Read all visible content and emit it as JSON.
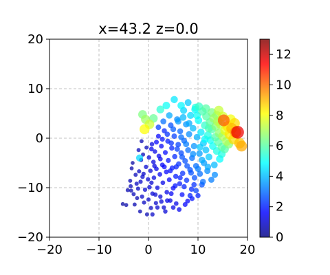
{
  "chart_data": {
    "type": "scatter",
    "title": "x=43.2 z=0.0",
    "xlabel": "",
    "ylabel": "",
    "xlim": [
      -20,
      20
    ],
    "ylim": [
      -20,
      20
    ],
    "x_ticks": [
      -20,
      -10,
      0,
      10,
      20
    ],
    "y_ticks": [
      -20,
      -10,
      0,
      10,
      20
    ],
    "grid": true,
    "colormap": "jet",
    "colorbar": {
      "range": [
        0,
        13
      ],
      "ticks": [
        0,
        2,
        4,
        6,
        8,
        10,
        12
      ]
    },
    "point_color": "value",
    "point_size": "value",
    "points_sample_note_hidden": "",
    "points": [
      {
        "x": -5.2,
        "y": -13.3,
        "value": 0.4
      },
      {
        "x": -4.5,
        "y": -13.5,
        "value": 0.5
      },
      {
        "x": -4.2,
        "y": -10.5,
        "value": 0.6
      },
      {
        "x": -3.7,
        "y": -8.6,
        "value": 0.6
      },
      {
        "x": -3.6,
        "y": -9.7,
        "value": 0.7
      },
      {
        "x": -3.5,
        "y": -10.6,
        "value": 0.6
      },
      {
        "x": -3.4,
        "y": -6.1,
        "value": 0.5
      },
      {
        "x": -3.2,
        "y": -5.0,
        "value": 0.4
      },
      {
        "x": -3.0,
        "y": -11.3,
        "value": 0.7
      },
      {
        "x": -2.8,
        "y": -13.4,
        "value": 0.6
      },
      {
        "x": -2.6,
        "y": -7.4,
        "value": 0.7
      },
      {
        "x": -2.3,
        "y": -12.1,
        "value": 0.6
      },
      {
        "x": -2.1,
        "y": -10.2,
        "value": 0.8
      },
      {
        "x": -1.9,
        "y": -6.7,
        "value": 0.8
      },
      {
        "x": -1.7,
        "y": -14.8,
        "value": 0.6
      },
      {
        "x": -1.6,
        "y": -8.8,
        "value": 0.9
      },
      {
        "x": -1.5,
        "y": -4.4,
        "value": 0.8
      },
      {
        "x": -1.4,
        "y": -0.6,
        "value": 0.6
      },
      {
        "x": -1.3,
        "y": -11.8,
        "value": 0.9
      },
      {
        "x": -1.1,
        "y": -3.3,
        "value": 0.7
      },
      {
        "x": -1.0,
        "y": -7.2,
        "value": 0.9
      },
      {
        "x": -0.9,
        "y": -13.0,
        "value": 0.8
      },
      {
        "x": -0.7,
        "y": -10.4,
        "value": 1.0
      },
      {
        "x": -0.5,
        "y": -5.8,
        "value": 1.0
      },
      {
        "x": -0.4,
        "y": -1.9,
        "value": 0.7
      },
      {
        "x": -0.3,
        "y": -15.4,
        "value": 0.6
      },
      {
        "x": -0.1,
        "y": -8.3,
        "value": 1.0
      },
      {
        "x": 0.0,
        "y": -12.4,
        "value": 0.9
      },
      {
        "x": 0.1,
        "y": -3.9,
        "value": 1.1
      },
      {
        "x": 0.2,
        "y": -9.9,
        "value": 1.1
      },
      {
        "x": 0.4,
        "y": -6.6,
        "value": 1.1
      },
      {
        "x": 0.5,
        "y": -14.1,
        "value": 0.8
      },
      {
        "x": 0.7,
        "y": -1.2,
        "value": 1.2
      },
      {
        "x": 0.8,
        "y": -11.2,
        "value": 1.1
      },
      {
        "x": 1.0,
        "y": -4.8,
        "value": 1.2
      },
      {
        "x": 1.1,
        "y": -8.0,
        "value": 1.2
      },
      {
        "x": 1.3,
        "y": -2.7,
        "value": 1.3
      },
      {
        "x": 1.5,
        "y": -13.1,
        "value": 0.9
      },
      {
        "x": 1.6,
        "y": -6.2,
        "value": 1.3
      },
      {
        "x": 1.8,
        "y": -10.0,
        "value": 1.2
      },
      {
        "x": 2.0,
        "y": 0.4,
        "value": 1.6
      },
      {
        "x": 2.1,
        "y": -3.6,
        "value": 1.4
      },
      {
        "x": 2.3,
        "y": -7.3,
        "value": 1.4
      },
      {
        "x": 2.4,
        "y": -11.8,
        "value": 1.1
      },
      {
        "x": 2.6,
        "y": -1.6,
        "value": 1.5
      },
      {
        "x": 2.8,
        "y": -5.4,
        "value": 1.5
      },
      {
        "x": 2.9,
        "y": -9.0,
        "value": 1.3
      },
      {
        "x": 3.1,
        "y": -14.0,
        "value": 1.0
      },
      {
        "x": 3.2,
        "y": 1.5,
        "value": 2.0
      },
      {
        "x": 3.4,
        "y": -2.9,
        "value": 1.7
      },
      {
        "x": 3.6,
        "y": -6.8,
        "value": 1.6
      },
      {
        "x": 3.7,
        "y": -10.9,
        "value": 1.3
      },
      {
        "x": 3.9,
        "y": -0.6,
        "value": 1.9
      },
      {
        "x": 4.0,
        "y": -4.5,
        "value": 1.8
      },
      {
        "x": 4.2,
        "y": -8.4,
        "value": 1.6
      },
      {
        "x": 4.4,
        "y": -12.6,
        "value": 1.2
      },
      {
        "x": 4.5,
        "y": 2.6,
        "value": 2.6
      },
      {
        "x": 4.7,
        "y": -2.0,
        "value": 2.0
      },
      {
        "x": 4.8,
        "y": -6.0,
        "value": 1.9
      },
      {
        "x": 5.0,
        "y": -10.1,
        "value": 1.6
      },
      {
        "x": 5.2,
        "y": 0.4,
        "value": 2.4
      },
      {
        "x": 5.3,
        "y": -3.7,
        "value": 2.1
      },
      {
        "x": 5.5,
        "y": -7.7,
        "value": 1.9
      },
      {
        "x": 5.6,
        "y": -13.2,
        "value": 1.3
      },
      {
        "x": 5.8,
        "y": 3.8,
        "value": 3.4
      },
      {
        "x": 6.0,
        "y": -1.3,
        "value": 2.4
      },
      {
        "x": 6.1,
        "y": -5.2,
        "value": 2.2
      },
      {
        "x": 6.3,
        "y": -9.2,
        "value": 1.9
      },
      {
        "x": 6.4,
        "y": 1.4,
        "value": 2.9
      },
      {
        "x": 6.6,
        "y": -3.0,
        "value": 2.5
      },
      {
        "x": 6.8,
        "y": -11.4,
        "value": 1.7
      },
      {
        "x": 6.9,
        "y": -7.1,
        "value": 2.2
      },
      {
        "x": 7.1,
        "y": 5.6,
        "value": 4.3
      },
      {
        "x": 7.2,
        "y": -0.5,
        "value": 2.9
      },
      {
        "x": 7.4,
        "y": -4.6,
        "value": 2.6
      },
      {
        "x": 7.6,
        "y": 2.8,
        "value": 3.5
      },
      {
        "x": 7.7,
        "y": -8.5,
        "value": 2.2
      },
      {
        "x": 7.9,
        "y": -12.7,
        "value": 1.6
      },
      {
        "x": 8.0,
        "y": -2.4,
        "value": 3.0
      },
      {
        "x": 8.2,
        "y": 0.8,
        "value": 3.4
      },
      {
        "x": 8.4,
        "y": -6.4,
        "value": 2.6
      },
      {
        "x": 8.5,
        "y": 4.6,
        "value": 4.4
      },
      {
        "x": 8.7,
        "y": -10.3,
        "value": 2.1
      },
      {
        "x": 8.8,
        "y": -4.0,
        "value": 3.0
      },
      {
        "x": 9.0,
        "y": 2.0,
        "value": 4.0
      },
      {
        "x": 9.2,
        "y": -1.6,
        "value": 3.5
      },
      {
        "x": 9.3,
        "y": -8.0,
        "value": 2.6
      },
      {
        "x": 9.5,
        "y": 6.2,
        "value": 5.2
      },
      {
        "x": 9.6,
        "y": -5.6,
        "value": 3.0
      },
      {
        "x": 9.8,
        "y": 0.2,
        "value": 3.9
      },
      {
        "x": 10.0,
        "y": -11.6,
        "value": 2.0
      },
      {
        "x": 10.1,
        "y": 3.6,
        "value": 4.9
      },
      {
        "x": 10.3,
        "y": -3.1,
        "value": 3.6
      },
      {
        "x": 10.4,
        "y": -7.2,
        "value": 3.0
      },
      {
        "x": 10.6,
        "y": 1.2,
        "value": 4.6
      },
      {
        "x": 10.8,
        "y": -9.4,
        "value": 2.6
      },
      {
        "x": 10.9,
        "y": 5.4,
        "value": 5.8
      },
      {
        "x": 11.1,
        "y": -1.0,
        "value": 4.2
      },
      {
        "x": 11.2,
        "y": -5.0,
        "value": 3.6
      },
      {
        "x": 11.4,
        "y": 2.6,
        "value": 5.5
      },
      {
        "x": 11.6,
        "y": -2.4,
        "value": 4.1
      },
      {
        "x": 11.7,
        "y": 4.4,
        "value": 6.0
      },
      {
        "x": 11.9,
        "y": -6.6,
        "value": 3.4
      },
      {
        "x": 12.0,
        "y": 0.6,
        "value": 5.2
      },
      {
        "x": 12.2,
        "y": -3.8,
        "value": 4.2
      },
      {
        "x": 12.4,
        "y": 3.2,
        "value": 6.1
      },
      {
        "x": 12.5,
        "y": -0.4,
        "value": 5.0
      },
      {
        "x": 12.7,
        "y": -8.4,
        "value": 3.2
      },
      {
        "x": 12.8,
        "y": 1.8,
        "value": 5.9
      },
      {
        "x": 13.0,
        "y": -1.6,
        "value": 5.0
      },
      {
        "x": 13.2,
        "y": 4.0,
        "value": 6.8
      },
      {
        "x": 13.3,
        "y": -5.4,
        "value": 4.0
      },
      {
        "x": 13.5,
        "y": 0.2,
        "value": 5.9
      },
      {
        "x": 13.6,
        "y": 2.4,
        "value": 6.6
      },
      {
        "x": 13.8,
        "y": -2.6,
        "value": 5.2
      },
      {
        "x": 14.0,
        "y": 3.4,
        "value": 7.1
      },
      {
        "x": 14.1,
        "y": -0.8,
        "value": 6.0
      },
      {
        "x": 14.3,
        "y": 1.0,
        "value": 6.7
      },
      {
        "x": 14.4,
        "y": -4.2,
        "value": 4.9
      },
      {
        "x": 14.6,
        "y": 2.8,
        "value": 7.3
      },
      {
        "x": 14.8,
        "y": -1.8,
        "value": 6.0
      },
      {
        "x": 15.0,
        "y": 0.4,
        "value": 7.0
      },
      {
        "x": 15.2,
        "y": 3.6,
        "value": 10.3
      },
      {
        "x": 15.5,
        "y": 1.6,
        "value": 7.8
      },
      {
        "x": 15.8,
        "y": -0.6,
        "value": 7.0
      },
      {
        "x": 16.0,
        "y": 2.4,
        "value": 8.4
      },
      {
        "x": 16.4,
        "y": 0.8,
        "value": 8.4
      },
      {
        "x": 16.8,
        "y": 2.0,
        "value": 9.0
      },
      {
        "x": 17.2,
        "y": -0.2,
        "value": 8.6
      },
      {
        "x": 17.6,
        "y": 1.2,
        "value": 9.5
      },
      {
        "x": 18.0,
        "y": 1.2,
        "value": 11.6
      },
      {
        "x": 18.4,
        "y": -1.0,
        "value": 8.9
      },
      {
        "x": 18.8,
        "y": -1.6,
        "value": 9.2
      },
      {
        "x": -1.2,
        "y": 4.8,
        "value": 6.5
      },
      {
        "x": -0.6,
        "y": 3.8,
        "value": 6.9
      },
      {
        "x": 0.2,
        "y": 2.8,
        "value": 7.5
      },
      {
        "x": 1.0,
        "y": 4.0,
        "value": 6.2
      },
      {
        "x": -0.8,
        "y": 1.8,
        "value": 8.1
      },
      {
        "x": 2.4,
        "y": 5.8,
        "value": 5.4
      },
      {
        "x": 3.6,
        "y": 6.6,
        "value": 5.0
      },
      {
        "x": 5.2,
        "y": 7.8,
        "value": 4.6
      },
      {
        "x": 6.6,
        "y": 6.6,
        "value": 4.8
      },
      {
        "x": 8.0,
        "y": 7.2,
        "value": 4.2
      },
      {
        "x": 9.4,
        "y": 5.8,
        "value": 4.8
      },
      {
        "x": 10.2,
        "y": 6.4,
        "value": 5.6
      },
      {
        "x": 11.6,
        "y": 6.0,
        "value": 6.0
      },
      {
        "x": 12.8,
        "y": 5.2,
        "value": 6.4
      },
      {
        "x": 13.8,
        "y": 4.6,
        "value": 6.8
      },
      {
        "x": 14.8,
        "y": -3.2,
        "value": 5.2
      },
      {
        "x": 15.4,
        "y": -2.2,
        "value": 5.9
      },
      {
        "x": 16.2,
        "y": -1.2,
        "value": 6.6
      },
      {
        "x": 12.0,
        "y": -5.8,
        "value": 3.8
      },
      {
        "x": 13.4,
        "y": -7.4,
        "value": 3.4
      },
      {
        "x": 11.0,
        "y": -8.8,
        "value": 3.0
      },
      {
        "x": 9.6,
        "y": -10.6,
        "value": 2.4
      },
      {
        "x": 8.4,
        "y": -11.6,
        "value": 2.0
      },
      {
        "x": 7.4,
        "y": -13.4,
        "value": 1.6
      },
      {
        "x": 6.2,
        "y": -14.4,
        "value": 1.4
      },
      {
        "x": 5.0,
        "y": -14.0,
        "value": 1.3
      },
      {
        "x": 3.4,
        "y": -14.8,
        "value": 1.1
      },
      {
        "x": 1.8,
        "y": -14.0,
        "value": 1.0
      },
      {
        "x": 0.8,
        "y": -15.4,
        "value": 0.9
      },
      {
        "x": -2.4,
        "y": -9.2,
        "value": 0.8
      },
      {
        "x": -2.0,
        "y": -2.4,
        "value": 0.7
      },
      {
        "x": -1.8,
        "y": -4.0,
        "value": 4.4
      },
      {
        "x": -1.2,
        "y": -7.8,
        "value": 1.0
      },
      {
        "x": 0.6,
        "y": -2.2,
        "value": 1.4
      },
      {
        "x": 1.6,
        "y": -0.8,
        "value": 1.6
      },
      {
        "x": 2.8,
        "y": -0.2,
        "value": 1.8
      },
      {
        "x": 3.8,
        "y": 0.8,
        "value": 2.2
      },
      {
        "x": 4.6,
        "y": -1.0,
        "value": 2.2
      },
      {
        "x": 5.8,
        "y": -2.2,
        "value": 2.4
      },
      {
        "x": 6.8,
        "y": -3.8,
        "value": 2.6
      },
      {
        "x": 7.8,
        "y": -5.6,
        "value": 2.6
      },
      {
        "x": 8.6,
        "y": -7.0,
        "value": 2.6
      },
      {
        "x": 9.2,
        "y": -9.4,
        "value": 2.2
      },
      {
        "x": 10.0,
        "y": -6.2,
        "value": 3.2
      },
      {
        "x": 10.8,
        "y": -4.4,
        "value": 3.8
      },
      {
        "x": 11.4,
        "y": -0.2,
        "value": 4.8
      },
      {
        "x": 12.2,
        "y": 2.0,
        "value": 5.8
      },
      {
        "x": 6.0,
        "y": 3.4,
        "value": 3.6
      },
      {
        "x": 7.0,
        "y": 4.2,
        "value": 4.0
      },
      {
        "x": 8.2,
        "y": 3.0,
        "value": 3.8
      },
      {
        "x": 9.8,
        "y": 4.6,
        "value": 5.0
      },
      {
        "x": 4.2,
        "y": 4.6,
        "value": 3.8
      },
      {
        "x": 3.0,
        "y": 3.4,
        "value": 3.0
      },
      {
        "x": 2.0,
        "y": 2.2,
        "value": 2.4
      },
      {
        "x": 6.4,
        "y": -8.0,
        "value": 2.0
      },
      {
        "x": 5.4,
        "y": -9.6,
        "value": 1.8
      },
      {
        "x": 4.6,
        "y": -11.2,
        "value": 1.5
      },
      {
        "x": 3.8,
        "y": -12.6,
        "value": 1.3
      },
      {
        "x": 2.6,
        "y": -12.8,
        "value": 1.1
      },
      {
        "x": 1.4,
        "y": -11.4,
        "value": 1.0
      },
      {
        "x": 0.6,
        "y": -9.0,
        "value": 1.0
      },
      {
        "x": 1.2,
        "y": -5.6,
        "value": 1.2
      },
      {
        "x": 2.4,
        "y": -4.2,
        "value": 1.4
      },
      {
        "x": 3.2,
        "y": -5.8,
        "value": 1.6
      },
      {
        "x": 4.4,
        "y": -6.6,
        "value": 1.8
      },
      {
        "x": 5.6,
        "y": -5.8,
        "value": 2.0
      },
      {
        "x": 7.2,
        "y": -9.8,
        "value": 2.0
      },
      {
        "x": 8.8,
        "y": -12.2,
        "value": 1.8
      },
      {
        "x": 10.4,
        "y": -1.8,
        "value": 4.2
      },
      {
        "x": 9.0,
        "y": -3.2,
        "value": 3.4
      },
      {
        "x": 7.6,
        "y": -1.2,
        "value": 3.2
      },
      {
        "x": 6.6,
        "y": 0.2,
        "value": 3.0
      },
      {
        "x": 5.0,
        "y": 1.8,
        "value": 2.8
      },
      {
        "x": 14.2,
        "y": 5.6,
        "value": 7.4
      },
      {
        "x": 15.0,
        "y": 4.4,
        "value": 7.6
      },
      {
        "x": 16.6,
        "y": 3.8,
        "value": 8.0
      },
      {
        "x": 17.4,
        "y": 3.0,
        "value": 8.6
      }
    ]
  }
}
